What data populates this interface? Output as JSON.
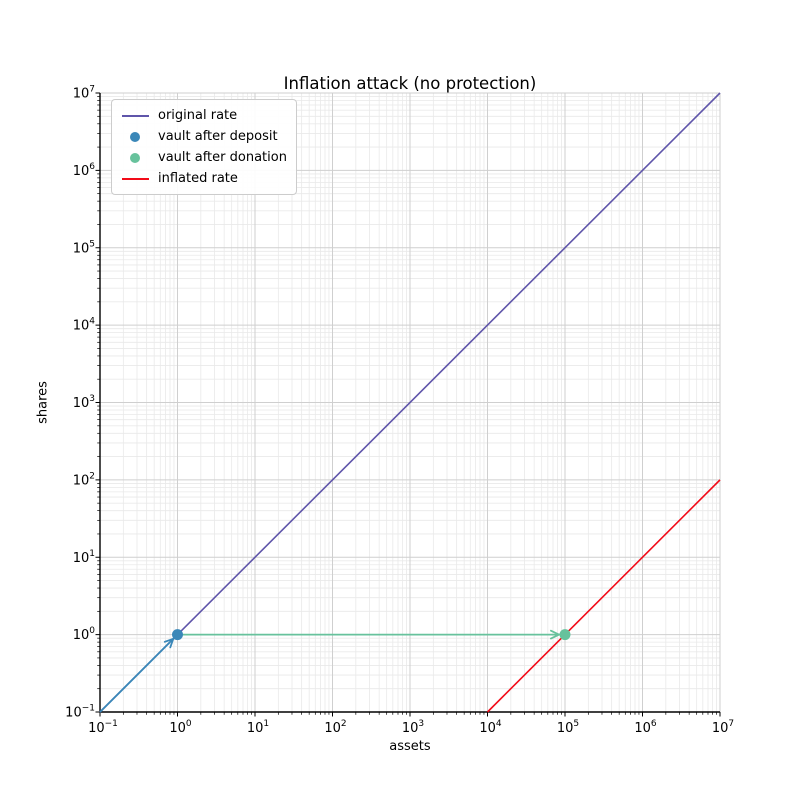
{
  "figure": {
    "background": "#ffffff",
    "text_color": "#000000",
    "spine_color": "#000000",
    "grid_major_color": "#cfcfcf",
    "grid_minor_color": "#e9e9e9"
  },
  "chart_data": {
    "type": "line",
    "title": "Inflation attack (no protection)",
    "xlabel": "assets",
    "ylabel": "shares",
    "xscale": "log",
    "yscale": "log",
    "xlim": [
      0.1,
      10000000
    ],
    "ylim": [
      0.1,
      10000000
    ],
    "grid": "both",
    "x_tick_exponents": [
      -1,
      0,
      1,
      2,
      3,
      4,
      5,
      6,
      7
    ],
    "y_tick_exponents": [
      -1,
      0,
      1,
      2,
      3,
      4,
      5,
      6,
      7
    ],
    "x_tick_labels": [
      "10^-1",
      "10^0",
      "10^1",
      "10^2",
      "10^3",
      "10^4",
      "10^5",
      "10^6",
      "10^7"
    ],
    "y_tick_labels": [
      "10^-1",
      "10^0",
      "10^1",
      "10^2",
      "10^3",
      "10^4",
      "10^5",
      "10^6",
      "10^7"
    ],
    "series": [
      {
        "name": "original rate",
        "kind": "line",
        "color": "#5f55aa",
        "width": 1.6,
        "points": [
          [
            0.1,
            0.1
          ],
          [
            10000000,
            10000000
          ]
        ]
      },
      {
        "name": "inflated rate",
        "kind": "line",
        "color": "#f20b18",
        "width": 1.6,
        "points": [
          [
            10000,
            0.1
          ],
          [
            10000000,
            100
          ]
        ]
      },
      {
        "name": "deposit arrow",
        "kind": "arrow",
        "color": "#3a87b8",
        "width": 1.8,
        "from": [
          0.1,
          0.1
        ],
        "to": [
          1,
          1
        ]
      },
      {
        "name": "donation arrow",
        "kind": "arrow",
        "color": "#67c29c",
        "width": 1.8,
        "from": [
          1,
          1
        ],
        "to": [
          100000,
          1
        ]
      },
      {
        "name": "vault after deposit",
        "kind": "scatter",
        "color": "#3a87b8",
        "radius": 5.5,
        "points": [
          [
            1,
            1
          ]
        ]
      },
      {
        "name": "vault after donation",
        "kind": "scatter",
        "color": "#67c29c",
        "radius": 5.5,
        "points": [
          [
            100000,
            1
          ]
        ]
      }
    ],
    "legend": {
      "position": "upper left",
      "entries": [
        {
          "label": "original rate",
          "marker": "line",
          "color": "#5f55aa"
        },
        {
          "label": "vault after deposit",
          "marker": "dot",
          "color": "#3a87b8"
        },
        {
          "label": "vault after donation",
          "marker": "dot",
          "color": "#67c29c"
        },
        {
          "label": "inflated rate",
          "marker": "line",
          "color": "#f20b18"
        }
      ]
    }
  }
}
